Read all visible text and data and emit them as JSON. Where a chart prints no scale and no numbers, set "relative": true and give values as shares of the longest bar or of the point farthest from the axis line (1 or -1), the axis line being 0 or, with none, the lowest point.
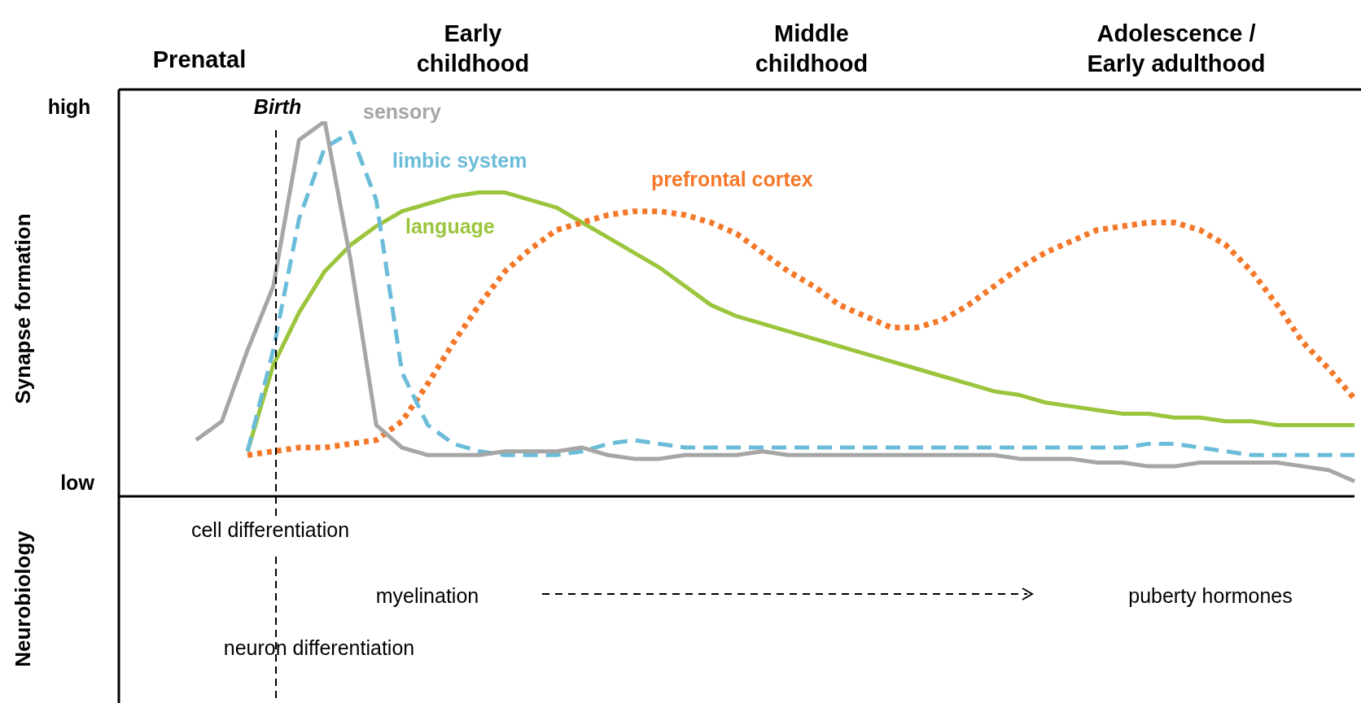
{
  "chart_data": {
    "type": "line",
    "ylabel": "Synapse formation",
    "relative": true,
    "categories": [
      null,
      null,
      null,
      null,
      null,
      null,
      null,
      null,
      null,
      null,
      null,
      null,
      null,
      null,
      null,
      null,
      null,
      null,
      null,
      null,
      null,
      null,
      null,
      null,
      null,
      null,
      null,
      null,
      null,
      null,
      null,
      null,
      null,
      null,
      null,
      null,
      null,
      null,
      null,
      null,
      null,
      null,
      null,
      null,
      null,
      null,
      null,
      null,
      null
    ],
    "marker": "none",
    "series": [
      {
        "name": "sensory",
        "color": "#a6a6a6",
        "line_style": "solid",
        "values": [
          null,
          null,
          null,
          0.15,
          0.2,
          0.39,
          0.56,
          0.95,
          1.0,
          0.63,
          0.19,
          0.13,
          0.11,
          0.11,
          0.11,
          0.12,
          0.12,
          0.12,
          0.13,
          0.11,
          0.1,
          0.1,
          0.11,
          0.11,
          0.11,
          0.12,
          0.11,
          0.11,
          0.11,
          0.11,
          0.11,
          0.11,
          0.11,
          0.11,
          0.11,
          0.1,
          0.1,
          0.1,
          0.09,
          0.09,
          0.08,
          0.08,
          0.09,
          0.09,
          0.09,
          0.09,
          0.08,
          0.07,
          0.04
        ]
      },
      {
        "name": "limbic system",
        "color": "#6bbcd9",
        "line_style": "dashed",
        "values": [
          null,
          null,
          null,
          null,
          null,
          0.12,
          0.39,
          0.74,
          0.93,
          0.97,
          0.79,
          0.33,
          0.19,
          0.14,
          0.12,
          0.11,
          0.11,
          0.11,
          0.12,
          0.14,
          0.15,
          0.14,
          0.13,
          0.13,
          0.13,
          0.13,
          0.13,
          0.13,
          0.13,
          0.13,
          0.13,
          0.13,
          0.13,
          0.13,
          0.13,
          0.13,
          0.13,
          0.13,
          0.13,
          0.13,
          0.14,
          0.14,
          0.13,
          0.12,
          0.11,
          0.11,
          0.11,
          0.11,
          0.11
        ]
      },
      {
        "name": "prefrontal cortex",
        "color": "#f4782a",
        "line_style": "dotted",
        "values": [
          null,
          null,
          null,
          null,
          null,
          0.11,
          0.12,
          0.13,
          0.13,
          0.14,
          0.15,
          0.2,
          0.3,
          0.41,
          0.51,
          0.6,
          0.66,
          0.71,
          0.73,
          0.75,
          0.76,
          0.76,
          0.75,
          0.73,
          0.7,
          0.65,
          0.6,
          0.56,
          0.51,
          0.48,
          0.45,
          0.45,
          0.47,
          0.51,
          0.56,
          0.61,
          0.65,
          0.68,
          0.71,
          0.72,
          0.73,
          0.73,
          0.71,
          0.67,
          0.6,
          0.51,
          0.41,
          0.34,
          0.26
        ]
      },
      {
        "name": "language",
        "color": "#9bc53d",
        "line_style": "solid",
        "values": [
          null,
          null,
          null,
          null,
          null,
          0.12,
          0.35,
          0.49,
          0.6,
          0.67,
          0.72,
          0.76,
          0.78,
          0.8,
          0.81,
          0.81,
          0.79,
          0.77,
          0.73,
          0.69,
          0.65,
          0.61,
          0.56,
          0.51,
          0.48,
          0.46,
          0.44,
          0.42,
          0.4,
          0.38,
          0.36,
          0.34,
          0.32,
          0.3,
          0.28,
          0.27,
          0.25,
          0.24,
          0.23,
          0.22,
          0.22,
          0.21,
          0.21,
          0.2,
          0.2,
          0.19,
          0.19,
          0.19,
          0.19
        ]
      }
    ],
    "annotations": [
      "Prenatal",
      "Early childhood",
      "Middle childhood",
      "Adolescence / Early adulthood",
      "high",
      "low",
      "Birth",
      "Neurobiology",
      "cell differentiation",
      "myelination",
      "puberty hormones",
      "neuron differentiation"
    ]
  }
}
